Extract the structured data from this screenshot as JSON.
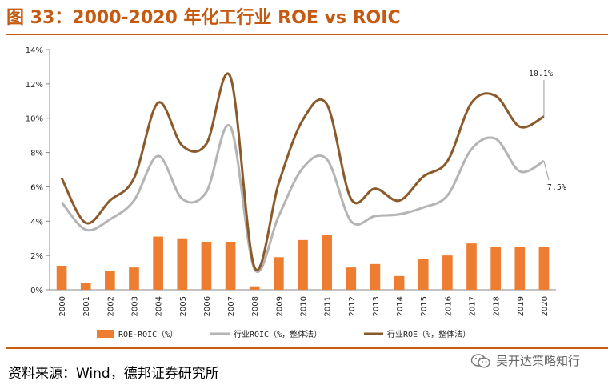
{
  "header": {
    "title": "图 33：2000-2020 年化工行业 ROE vs ROIC"
  },
  "footer": {
    "source": "资料来源：Wind，德邦证券研究所",
    "watermark": "吴开达策略知行"
  },
  "colors": {
    "bar": "#ed7d31",
    "roic": "#b4b4b4",
    "roe": "#8b5a2b",
    "accent": "#c55a11"
  },
  "chart_data": {
    "type": "bar+line",
    "categories": [
      "2000",
      "2001",
      "2002",
      "2003",
      "2004",
      "2005",
      "2006",
      "2007",
      "2008",
      "2009",
      "2010",
      "2011",
      "2012",
      "2013",
      "2014",
      "2015",
      "2016",
      "2017",
      "2018",
      "2019",
      "2020"
    ],
    "ylim": [
      0,
      14
    ],
    "yticks": [
      "0%",
      "2%",
      "4%",
      "6%",
      "8%",
      "10%",
      "12%",
      "14%"
    ],
    "series": [
      {
        "name": "ROE-ROIC（%）",
        "kind": "bar",
        "values": [
          1.4,
          0.4,
          1.1,
          1.3,
          3.1,
          3.0,
          2.8,
          2.8,
          0.2,
          1.9,
          2.9,
          3.2,
          1.3,
          1.5,
          0.8,
          1.8,
          2.0,
          2.7,
          2.5,
          2.5,
          2.5
        ]
      },
      {
        "name": "行业ROIC（%，整体法）",
        "kind": "line",
        "values": [
          5.1,
          3.5,
          4.1,
          5.2,
          7.8,
          5.3,
          5.7,
          9.5,
          1.2,
          4.3,
          7.1,
          7.6,
          4.0,
          4.3,
          4.4,
          4.8,
          5.5,
          8.2,
          8.8,
          6.9,
          7.5
        ]
      },
      {
        "name": "行业ROE（%，整体法）",
        "kind": "line",
        "values": [
          6.5,
          3.9,
          5.2,
          6.5,
          10.9,
          8.4,
          8.5,
          12.4,
          1.3,
          6.2,
          9.9,
          10.8,
          5.3,
          5.9,
          5.2,
          6.6,
          7.5,
          10.9,
          11.3,
          9.5,
          10.1
        ]
      }
    ],
    "annotations": {
      "roe_last": "10.1%",
      "roic_last": "7.5%"
    },
    "legend_position": "bottom"
  }
}
